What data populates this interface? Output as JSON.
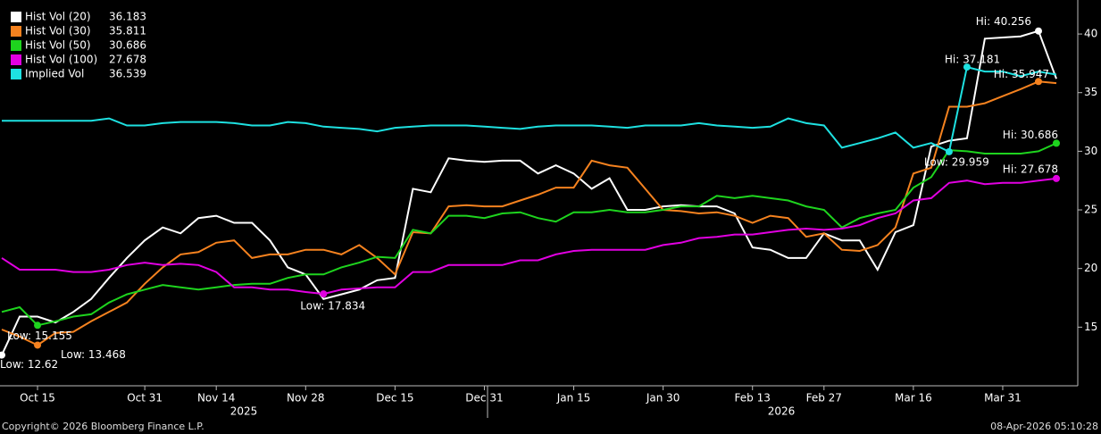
{
  "chart_data": {
    "type": "line",
    "categories": [
      null,
      null,
      "Oct 15",
      null,
      null,
      null,
      null,
      null,
      "Oct 31",
      null,
      null,
      null,
      "Nov 14",
      null,
      null,
      null,
      null,
      "Nov 28",
      null,
      null,
      null,
      null,
      "Dec 15",
      null,
      null,
      null,
      null,
      "Dec 31",
      null,
      null,
      null,
      null,
      "Jan 15",
      null,
      null,
      null,
      null,
      "Jan 30",
      null,
      null,
      null,
      null,
      "Feb 13",
      null,
      null,
      null,
      "Feb 27",
      null,
      null,
      null,
      null,
      "Mar 16",
      null,
      null,
      null,
      null,
      "Mar 31",
      null,
      null,
      null
    ],
    "year_labels": [
      "2025",
      "2026"
    ],
    "ylim": [
      10,
      42.9
    ],
    "yticks": [
      15,
      20,
      25,
      30,
      35,
      40
    ],
    "legend": "top-left",
    "series": [
      {
        "name": "Hist Vol (20)",
        "color": "#ffffff",
        "legend_value": 36.183,
        "values": [
          12.62,
          15.9,
          15.9,
          15.4,
          16.3,
          17.4,
          19.2,
          20.9,
          22.4,
          23.5,
          23.0,
          24.3,
          24.5,
          23.9,
          23.9,
          22.4,
          20.1,
          19.5,
          17.4,
          17.8,
          18.2,
          19.0,
          19.2,
          26.8,
          26.5,
          29.4,
          29.2,
          29.1,
          29.2,
          29.2,
          28.1,
          28.8,
          28.1,
          26.8,
          27.7,
          25.0,
          25.0,
          25.3,
          25.4,
          25.3,
          25.3,
          24.7,
          21.8,
          21.6,
          20.9,
          20.9,
          23.0,
          22.4,
          22.4,
          19.9,
          23.1,
          23.7,
          30.4,
          30.9,
          31.1,
          39.6,
          39.7,
          39.8,
          40.256,
          36.183
        ],
        "value_labels": [
          "Low: 12.62",
          null,
          null,
          null,
          null,
          null,
          null,
          null,
          null,
          null,
          null,
          null,
          null,
          null,
          null,
          null,
          null,
          null,
          null,
          null,
          null,
          null,
          null,
          null,
          null,
          null,
          null,
          null,
          null,
          null,
          null,
          null,
          null,
          null,
          null,
          null,
          null,
          null,
          null,
          null,
          null,
          null,
          null,
          null,
          null,
          null,
          null,
          null,
          null,
          null,
          null,
          null,
          null,
          null,
          null,
          null,
          null,
          null,
          "Hi: 40.256",
          null
        ]
      },
      {
        "name": "Hist Vol (30)",
        "color": "#f5821f",
        "legend_value": 35.811,
        "values": [
          14.8,
          14.2,
          13.468,
          14.5,
          14.6,
          15.5,
          16.3,
          17.1,
          18.7,
          20.1,
          21.2,
          21.4,
          22.2,
          22.4,
          20.9,
          21.2,
          21.2,
          21.6,
          21.6,
          21.2,
          22.0,
          20.9,
          19.5,
          23.1,
          23.0,
          25.3,
          25.4,
          25.3,
          25.3,
          25.8,
          26.3,
          26.9,
          26.9,
          29.2,
          28.8,
          28.6,
          26.8,
          25.0,
          24.9,
          24.7,
          24.8,
          24.5,
          23.9,
          24.5,
          24.3,
          22.7,
          23.0,
          21.6,
          21.5,
          22.0,
          23.5,
          28.1,
          28.6,
          33.8,
          33.8,
          34.1,
          34.7,
          35.3,
          35.947,
          35.811
        ],
        "value_labels": [
          null,
          null,
          "Low: 13.468",
          null,
          null,
          null,
          null,
          null,
          null,
          null,
          null,
          null,
          null,
          null,
          null,
          null,
          null,
          null,
          null,
          null,
          null,
          null,
          null,
          null,
          null,
          null,
          null,
          null,
          null,
          null,
          null,
          null,
          null,
          null,
          null,
          null,
          null,
          null,
          null,
          null,
          null,
          null,
          null,
          null,
          null,
          null,
          null,
          null,
          null,
          null,
          null,
          null,
          null,
          null,
          null,
          null,
          null,
          null,
          "Hi: 35.947",
          null
        ]
      },
      {
        "name": "Hist Vol (50)",
        "color": "#1ed41e",
        "legend_value": 30.686,
        "values": [
          16.3,
          16.7,
          15.155,
          15.5,
          15.9,
          16.1,
          17.1,
          17.8,
          18.2,
          18.6,
          18.4,
          18.2,
          18.4,
          18.6,
          18.7,
          18.7,
          19.2,
          19.5,
          19.5,
          20.1,
          20.5,
          21.0,
          20.9,
          23.3,
          23.0,
          24.5,
          24.5,
          24.3,
          24.7,
          24.8,
          24.3,
          24.0,
          24.8,
          24.8,
          25.0,
          24.8,
          24.8,
          25.0,
          25.3,
          25.3,
          26.2,
          26.0,
          26.2,
          26.0,
          25.8,
          25.3,
          25.0,
          23.5,
          24.3,
          24.7,
          25.0,
          26.9,
          27.8,
          30.1,
          30.0,
          29.8,
          29.8,
          29.8,
          30.0,
          30.686
        ],
        "value_labels": [
          null,
          null,
          "Low: 15.155",
          null,
          null,
          null,
          null,
          null,
          null,
          null,
          null,
          null,
          null,
          null,
          null,
          null,
          null,
          null,
          null,
          null,
          null,
          null,
          null,
          null,
          null,
          null,
          null,
          null,
          null,
          null,
          null,
          null,
          null,
          null,
          null,
          null,
          null,
          null,
          null,
          null,
          null,
          null,
          null,
          null,
          null,
          null,
          null,
          null,
          null,
          null,
          null,
          null,
          null,
          null,
          null,
          null,
          null,
          null,
          null,
          "Hi: 30.686"
        ]
      },
      {
        "name": "Hist Vol (100)",
        "color": "#e100e1",
        "legend_value": 27.678,
        "values": [
          20.9,
          19.9,
          19.9,
          19.9,
          19.7,
          19.7,
          19.9,
          20.3,
          20.5,
          20.3,
          20.4,
          20.3,
          19.7,
          18.4,
          18.4,
          18.2,
          18.2,
          18.0,
          17.834,
          18.2,
          18.3,
          18.4,
          18.4,
          19.7,
          19.7,
          20.3,
          20.3,
          20.3,
          20.3,
          20.7,
          20.7,
          21.2,
          21.5,
          21.6,
          21.6,
          21.6,
          21.6,
          22.0,
          22.2,
          22.6,
          22.7,
          22.9,
          22.9,
          23.1,
          23.3,
          23.4,
          23.3,
          23.4,
          23.7,
          24.3,
          24.7,
          25.8,
          26.0,
          27.3,
          27.5,
          27.2,
          27.3,
          27.3,
          27.5,
          27.678
        ],
        "value_labels": [
          null,
          null,
          null,
          null,
          null,
          null,
          null,
          null,
          null,
          null,
          null,
          null,
          null,
          null,
          null,
          null,
          null,
          null,
          "Low: 17.834",
          null,
          null,
          null,
          null,
          null,
          null,
          null,
          null,
          null,
          null,
          null,
          null,
          null,
          null,
          null,
          null,
          null,
          null,
          null,
          null,
          null,
          null,
          null,
          null,
          null,
          null,
          null,
          null,
          null,
          null,
          null,
          null,
          null,
          null,
          null,
          null,
          null,
          null,
          null,
          null,
          "Hi: 27.678"
        ]
      },
      {
        "name": "Implied Vol",
        "color": "#1ee1e1",
        "legend_value": 36.539,
        "values": [
          32.6,
          32.6,
          32.6,
          32.6,
          32.6,
          32.6,
          32.8,
          32.2,
          32.2,
          32.4,
          32.5,
          32.5,
          32.5,
          32.4,
          32.2,
          32.2,
          32.5,
          32.4,
          32.1,
          32.0,
          31.9,
          31.7,
          32.0,
          32.1,
          32.2,
          32.2,
          32.2,
          32.1,
          32.0,
          31.9,
          32.1,
          32.2,
          32.2,
          32.2,
          32.1,
          32.0,
          32.2,
          32.2,
          32.2,
          32.4,
          32.2,
          32.1,
          32.0,
          32.1,
          32.8,
          32.4,
          32.2,
          30.3,
          30.7,
          31.1,
          31.6,
          30.3,
          30.7,
          29.959,
          37.181,
          36.8,
          36.8,
          36.4,
          36.8,
          36.539
        ],
        "value_labels": [
          null,
          null,
          null,
          null,
          null,
          null,
          null,
          null,
          null,
          null,
          null,
          null,
          null,
          null,
          null,
          null,
          null,
          null,
          null,
          null,
          null,
          null,
          null,
          null,
          null,
          null,
          null,
          null,
          null,
          null,
          null,
          null,
          null,
          null,
          null,
          null,
          null,
          null,
          null,
          null,
          null,
          null,
          null,
          null,
          null,
          null,
          null,
          null,
          null,
          null,
          null,
          null,
          null,
          "Low: 29.959",
          "Hi: 37.181",
          null,
          null,
          null,
          null,
          null
        ]
      }
    ]
  },
  "footer": {
    "copyright": "Copyright© 2026 Bloomberg Finance L.P.",
    "timestamp": "08-Apr-2026 05:10:28"
  }
}
